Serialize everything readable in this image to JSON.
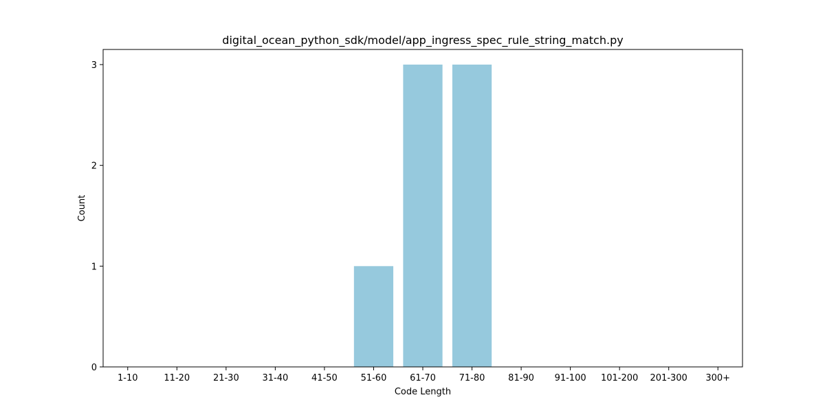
{
  "chart_data": {
    "type": "bar",
    "title": "digital_ocean_python_sdk/model/app_ingress_spec_rule_string_match.py",
    "xlabel": "Code Length",
    "ylabel": "Count",
    "categories": [
      "1-10",
      "11-20",
      "21-30",
      "31-40",
      "41-50",
      "51-60",
      "61-70",
      "71-80",
      "81-90",
      "91-100",
      "101-200",
      "201-300",
      "300+"
    ],
    "values": [
      0,
      0,
      0,
      0,
      0,
      1,
      3,
      3,
      0,
      0,
      0,
      0,
      0
    ],
    "ylim": [
      0,
      3.15
    ],
    "yticks": [
      0,
      1,
      2,
      3
    ],
    "bar_color": "#96c9dd",
    "grid": false,
    "legend": "none"
  }
}
